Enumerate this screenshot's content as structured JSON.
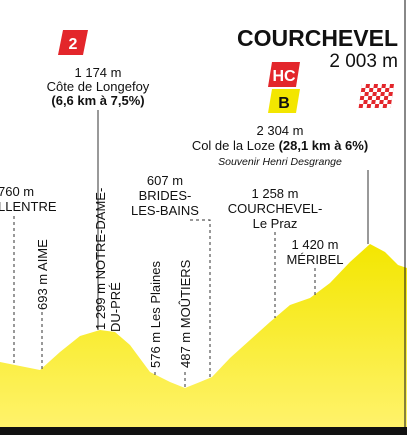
{
  "finish": {
    "name": "COURCHEVEL",
    "altitude": "2 003 m"
  },
  "badges": {
    "category_2": "2",
    "hors_categorie": "HC",
    "bonus": "B"
  },
  "climbs": [
    {
      "altitude": "1 174 m",
      "name": "Côte de Longefoy",
      "detail": "(6,6 km à 7,5%)"
    },
    {
      "altitude": "2 304 m",
      "name": "Col de la Loze",
      "detail": "(28,1 km à 6%)",
      "note": "Souvenir Henri Desgrange"
    }
  ],
  "places": [
    {
      "altitude": "760 m",
      "lines": [
        "LLENTRE"
      ]
    },
    {
      "lines": [
        "693 m AIME"
      ]
    },
    {
      "lines": [
        "1 299 m NOTRE-DAME-",
        "DU-PRÉ"
      ]
    },
    {
      "altitude": "607 m",
      "lines": [
        "BRIDES-",
        "LES-BAINS"
      ]
    },
    {
      "lines": [
        "576 m Les Plaines"
      ]
    },
    {
      "lines": [
        "487 m MOÛTIERS"
      ]
    },
    {
      "altitude": "1 258 m",
      "lines": [
        "COURCHEVEL-",
        "Le Praz"
      ]
    },
    {
      "altitude": "1 420 m",
      "lines": [
        "MÉRIBEL"
      ]
    }
  ]
}
